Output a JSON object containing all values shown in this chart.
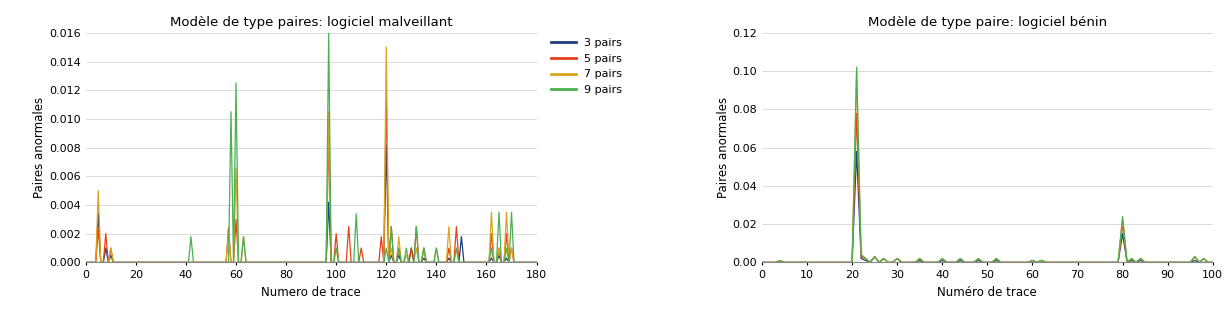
{
  "chart1": {
    "title": "Modèle de type paires: logiciel malveillant",
    "xlabel": "Numero de trace",
    "ylabel": "Paires anormales",
    "ylim": [
      0,
      0.016
    ],
    "xlim": [
      0,
      180
    ],
    "yticks": [
      0,
      0.002,
      0.004,
      0.006,
      0.008,
      0.01,
      0.012,
      0.014,
      0.016
    ],
    "xticks": [
      0,
      20,
      40,
      60,
      80,
      100,
      120,
      140,
      160,
      180
    ],
    "series": {
      "3pairs": {
        "color": "#1f3f7f",
        "x": [
          5,
          8,
          10,
          97,
          120,
          122,
          125,
          130,
          135,
          145,
          150,
          162,
          165,
          168
        ],
        "y": [
          0.0034,
          0.001,
          0.0005,
          0.0042,
          0.0082,
          0.0005,
          0.0005,
          0.001,
          0.0003,
          0.0003,
          0.0018,
          0.0003,
          0.0005,
          0.0003
        ]
      },
      "5pairs": {
        "color": "#e8401c",
        "x": [
          5,
          8,
          10,
          57,
          60,
          97,
          100,
          105,
          110,
          118,
          120,
          122,
          125,
          130,
          132,
          135,
          145,
          148,
          162,
          165,
          168,
          170
        ],
        "y": [
          0.0024,
          0.002,
          0.001,
          0.0024,
          0.003,
          0.009,
          0.002,
          0.0025,
          0.001,
          0.0018,
          0.0118,
          0.0025,
          0.001,
          0.001,
          0.0025,
          0.001,
          0.001,
          0.0025,
          0.002,
          0.001,
          0.002,
          0.001
        ]
      },
      "7pairs": {
        "color": "#daa520",
        "x": [
          5,
          10,
          57,
          60,
          63,
          97,
          100,
          120,
          122,
          125,
          128,
          132,
          135,
          140,
          145,
          148,
          162,
          165,
          168,
          170
        ],
        "y": [
          0.005,
          0.001,
          0.002,
          0.0066,
          0.0018,
          0.0105,
          0.001,
          0.015,
          0.001,
          0.0018,
          0.0005,
          0.001,
          0.001,
          0.001,
          0.0025,
          0.001,
          0.0035,
          0.001,
          0.0035,
          0.001
        ]
      },
      "9pairs": {
        "color": "#4caf50",
        "x": [
          42,
          58,
          60,
          63,
          97,
          100,
          108,
          120,
          122,
          125,
          128,
          132,
          135,
          140,
          148,
          162,
          165,
          168,
          170
        ],
        "y": [
          0.0018,
          0.0105,
          0.0125,
          0.0018,
          0.016,
          0.001,
          0.0034,
          0.001,
          0.0025,
          0.001,
          0.001,
          0.0025,
          0.001,
          0.001,
          0.001,
          0.001,
          0.0035,
          0.001,
          0.0035
        ]
      }
    }
  },
  "chart2": {
    "title": "Modèle de type paire: logiciel bénin",
    "xlabel": "Numéro de trace",
    "ylabel": "Paires anormales",
    "ylim": [
      0,
      0.12
    ],
    "xlim": [
      0,
      100
    ],
    "yticks": [
      0,
      0.02,
      0.04,
      0.06,
      0.08,
      0.1,
      0.12
    ],
    "xticks": [
      0,
      10,
      20,
      30,
      40,
      50,
      60,
      70,
      80,
      90,
      100
    ],
    "series": {
      "3pairs": {
        "color": "#1f3f7f",
        "x": [
          4,
          21,
          22,
          23,
          25,
          27,
          30,
          35,
          40,
          44,
          48,
          52,
          60,
          62,
          80,
          82,
          84,
          96
        ],
        "y": [
          0.0005,
          0.058,
          0.002,
          0.001,
          0.003,
          0.002,
          0.002,
          0.001,
          0.001,
          0.001,
          0.001,
          0.001,
          0.001,
          0.001,
          0.015,
          0.001,
          0.001,
          0.001
        ]
      },
      "5pairs": {
        "color": "#e8401c",
        "x": [
          4,
          21,
          22,
          23,
          25,
          27,
          30,
          35,
          40,
          44,
          48,
          52,
          60,
          62,
          80,
          82,
          84,
          96,
          98
        ],
        "y": [
          0.0005,
          0.078,
          0.003,
          0.002,
          0.003,
          0.002,
          0.002,
          0.002,
          0.002,
          0.002,
          0.002,
          0.002,
          0.001,
          0.001,
          0.02,
          0.002,
          0.002,
          0.003,
          0.002
        ]
      },
      "7pairs": {
        "color": "#daa520",
        "x": [
          4,
          21,
          22,
          23,
          25,
          27,
          30,
          35,
          40,
          44,
          48,
          52,
          60,
          62,
          80,
          82,
          84,
          96,
          98
        ],
        "y": [
          0.001,
          0.1,
          0.004,
          0.002,
          0.003,
          0.002,
          0.002,
          0.002,
          0.002,
          0.002,
          0.002,
          0.002,
          0.001,
          0.001,
          0.023,
          0.002,
          0.002,
          0.003,
          0.002
        ]
      },
      "9pairs": {
        "color": "#4caf50",
        "x": [
          4,
          21,
          22,
          23,
          25,
          27,
          30,
          35,
          40,
          44,
          48,
          52,
          60,
          62,
          80,
          82,
          84,
          96,
          98
        ],
        "y": [
          0.001,
          0.102,
          0.004,
          0.002,
          0.003,
          0.002,
          0.002,
          0.002,
          0.002,
          0.002,
          0.002,
          0.002,
          0.001,
          0.001,
          0.024,
          0.002,
          0.002,
          0.003,
          0.002
        ]
      }
    }
  },
  "legend_labels": [
    "3 pairs",
    "5 pairs",
    "7 pairs",
    "9 pairs"
  ],
  "legend_keys": [
    "3pairs",
    "5pairs",
    "7pairs",
    "9pairs"
  ],
  "background_color": "#ffffff",
  "grid_color": "#cccccc"
}
